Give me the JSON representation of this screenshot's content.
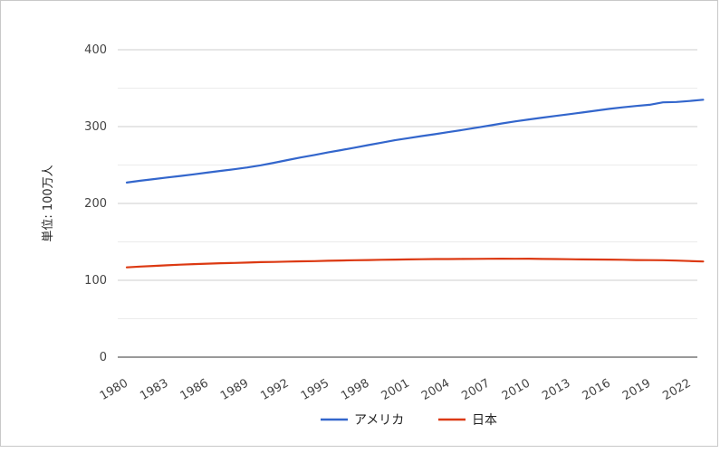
{
  "chart_data": {
    "type": "line",
    "title": "",
    "xlabel": "",
    "ylabel": "単位: 100万人",
    "ylim": [
      0,
      400
    ],
    "y_ticks": [
      0,
      100,
      200,
      300,
      400
    ],
    "x_ticks": [
      "1980",
      "1983",
      "1986",
      "1989",
      "1992",
      "1995",
      "1998",
      "2001",
      "2004",
      "2007",
      "2010",
      "2013",
      "2016",
      "2019",
      "2022"
    ],
    "x": [
      1980,
      1981,
      1982,
      1983,
      1984,
      1985,
      1986,
      1987,
      1988,
      1989,
      1990,
      1991,
      1992,
      1993,
      1994,
      1995,
      1996,
      1997,
      1998,
      1999,
      2000,
      2001,
      2002,
      2003,
      2004,
      2005,
      2006,
      2007,
      2008,
      2009,
      2010,
      2011,
      2012,
      2013,
      2014,
      2015,
      2016,
      2017,
      2018,
      2019,
      2020,
      2021,
      2022,
      2023
    ],
    "series": [
      {
        "name": "アメリカ",
        "color": "#3366cc",
        "values": [
          227.2,
          229.5,
          231.7,
          233.8,
          235.8,
          237.9,
          240.1,
          242.3,
          244.5,
          246.8,
          249.6,
          253.0,
          256.5,
          259.9,
          263.1,
          266.3,
          269.4,
          272.6,
          275.9,
          279.0,
          282.2,
          285.0,
          287.6,
          290.1,
          292.8,
          295.5,
          298.4,
          301.2,
          304.1,
          306.8,
          309.3,
          311.6,
          313.9,
          316.1,
          318.4,
          320.7,
          323.1,
          325.1,
          326.8,
          328.3,
          331.5,
          332.0,
          333.3,
          334.9
        ]
      },
      {
        "name": "日本",
        "color": "#dc3912",
        "values": [
          116.8,
          117.9,
          118.7,
          119.5,
          120.3,
          121.0,
          121.7,
          122.2,
          122.6,
          123.1,
          123.6,
          123.9,
          124.3,
          124.7,
          125.0,
          125.4,
          125.8,
          126.1,
          126.4,
          126.7,
          126.9,
          127.2,
          127.4,
          127.6,
          127.7,
          127.8,
          127.9,
          128.0,
          128.1,
          128.0,
          128.1,
          127.8,
          127.6,
          127.4,
          127.2,
          127.1,
          126.9,
          126.7,
          126.4,
          126.2,
          126.1,
          125.7,
          125.1,
          124.5
        ]
      }
    ],
    "grid": true,
    "legend_position": "bottom"
  }
}
